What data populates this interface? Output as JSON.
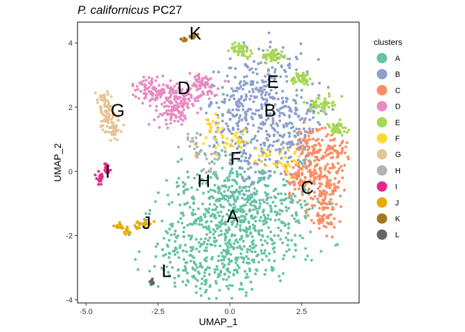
{
  "chart_data": {
    "type": "scatter",
    "title_species": "P. californicus",
    "title_rest": "PC27",
    "xlabel": "UMAP_1",
    "ylabel": "UMAP_2",
    "xlim": [
      -5.3,
      4.5
    ],
    "ylim": [
      -4.1,
      4.65
    ],
    "xticks": [
      -5.0,
      -2.5,
      0.0,
      2.5
    ],
    "xtick_labels": [
      "-5.0",
      "-2.5",
      "0.0",
      "2.5"
    ],
    "yticks": [
      -4,
      -2,
      0,
      2,
      4
    ],
    "ytick_labels": [
      "-4",
      "-2",
      "0",
      "2",
      "4"
    ],
    "grid": false,
    "legend_title": "clusters",
    "legend_position": "right",
    "series": [
      {
        "name": "A",
        "color": "#66C2A5",
        "label_pos": [
          0.1,
          -1.4
        ],
        "points": [
          [
            -0.3,
            -1.6
          ],
          [
            0.3,
            -1.2
          ],
          [
            0.8,
            -0.8
          ],
          [
            -0.8,
            -2.2
          ],
          [
            0.0,
            -3.1
          ],
          [
            1.2,
            -1.6
          ],
          [
            -1.3,
            -1.1
          ],
          [
            0.6,
            -2.6
          ],
          [
            -0.5,
            -0.6
          ],
          [
            1.6,
            -2.2
          ],
          [
            -1.8,
            -2.6
          ],
          [
            0.2,
            -0.3
          ],
          [
            1.9,
            -1.0
          ],
          [
            -1.0,
            -3.0
          ]
        ],
        "spread": [
          1.3,
          1.0
        ],
        "count": 900
      },
      {
        "name": "B",
        "color": "#8DA0CB",
        "label_pos": [
          1.4,
          1.9
        ],
        "points": [
          [
            1.2,
            2.0
          ],
          [
            0.6,
            2.6
          ],
          [
            1.8,
            1.4
          ],
          [
            0.3,
            1.2
          ],
          [
            2.2,
            0.8
          ],
          [
            1.5,
            3.3
          ],
          [
            0.9,
            0.3
          ],
          [
            2.6,
            2.0
          ],
          [
            0.0,
            2.0
          ]
        ],
        "spread": [
          0.9,
          0.8
        ],
        "count": 550
      },
      {
        "name": "C",
        "color": "#FC8D62",
        "label_pos": [
          2.7,
          -0.5
        ],
        "points": [
          [
            3.0,
            0.0
          ],
          [
            3.5,
            -0.6
          ],
          [
            2.8,
            0.8
          ],
          [
            3.6,
            0.6
          ],
          [
            3.2,
            -1.3
          ],
          [
            2.4,
            -0.2
          ]
        ],
        "spread": [
          0.45,
          0.55
        ],
        "count": 380
      },
      {
        "name": "D",
        "color": "#E78AC3",
        "label_pos": [
          -1.6,
          2.6
        ],
        "points": [
          [
            -2.2,
            2.4
          ],
          [
            -1.5,
            2.2
          ],
          [
            -2.8,
            2.6
          ],
          [
            -1.0,
            2.7
          ],
          [
            -2.0,
            1.8
          ]
        ],
        "spread": [
          0.55,
          0.35
        ],
        "count": 300
      },
      {
        "name": "E",
        "color": "#A6D854",
        "label_pos": [
          1.5,
          2.8
        ],
        "points": [
          [
            0.4,
            3.8
          ],
          [
            1.5,
            3.6
          ],
          [
            2.5,
            2.9
          ],
          [
            3.2,
            2.1
          ],
          [
            3.7,
            1.3
          ]
        ],
        "spread": [
          0.35,
          0.2
        ],
        "count": 230
      },
      {
        "name": "F",
        "color": "#FFD92F",
        "label_pos": [
          0.2,
          0.4
        ],
        "points": [
          [
            -0.6,
            1.4
          ],
          [
            0.3,
            1.0
          ],
          [
            1.5,
            0.5
          ],
          [
            2.0,
            0.3
          ],
          [
            -0.2,
            0.8
          ]
        ],
        "spread": [
          0.6,
          0.35
        ],
        "count": 90
      },
      {
        "name": "G",
        "color": "#E5C494",
        "label_pos": [
          -3.9,
          1.9
        ],
        "points": [
          [
            -4.3,
            1.7
          ],
          [
            -4.0,
            1.3
          ],
          [
            -4.4,
            2.1
          ]
        ],
        "spread": [
          0.25,
          0.35
        ],
        "count": 120
      },
      {
        "name": "H",
        "color": "#B3B3B3",
        "label_pos": [
          -0.9,
          -0.3
        ],
        "points": [
          [
            -1.0,
            0.7
          ],
          [
            -0.6,
            0.3
          ],
          [
            -1.3,
            0.9
          ]
        ],
        "spread": [
          0.4,
          0.3
        ],
        "count": 35
      },
      {
        "name": "I",
        "color": "#E7298A",
        "label_pos": [
          -4.25,
          0.0
        ],
        "points": [
          [
            -4.5,
            -0.2
          ],
          [
            -4.3,
            0.1
          ]
        ],
        "spread": [
          0.12,
          0.2
        ],
        "count": 45
      },
      {
        "name": "J",
        "color": "#E6AB02",
        "label_pos": [
          -2.9,
          -1.6
        ],
        "points": [
          [
            -3.6,
            -1.9
          ],
          [
            -3.2,
            -1.7
          ],
          [
            -2.9,
            -1.6
          ],
          [
            -3.8,
            -1.7
          ]
        ],
        "spread": [
          0.2,
          0.12
        ],
        "count": 45
      },
      {
        "name": "K",
        "color": "#A6761D",
        "label_pos": [
          -1.2,
          4.3
        ],
        "points": [
          [
            -1.6,
            4.1
          ],
          [
            -1.3,
            4.2
          ]
        ],
        "spread": [
          0.18,
          0.06
        ],
        "count": 22
      },
      {
        "name": "L",
        "color": "#666666",
        "label_pos": [
          -2.2,
          -3.1
        ],
        "points": [
          [
            -2.7,
            -3.45
          ]
        ],
        "spread": [
          0.07,
          0.07
        ],
        "count": 18
      }
    ]
  }
}
